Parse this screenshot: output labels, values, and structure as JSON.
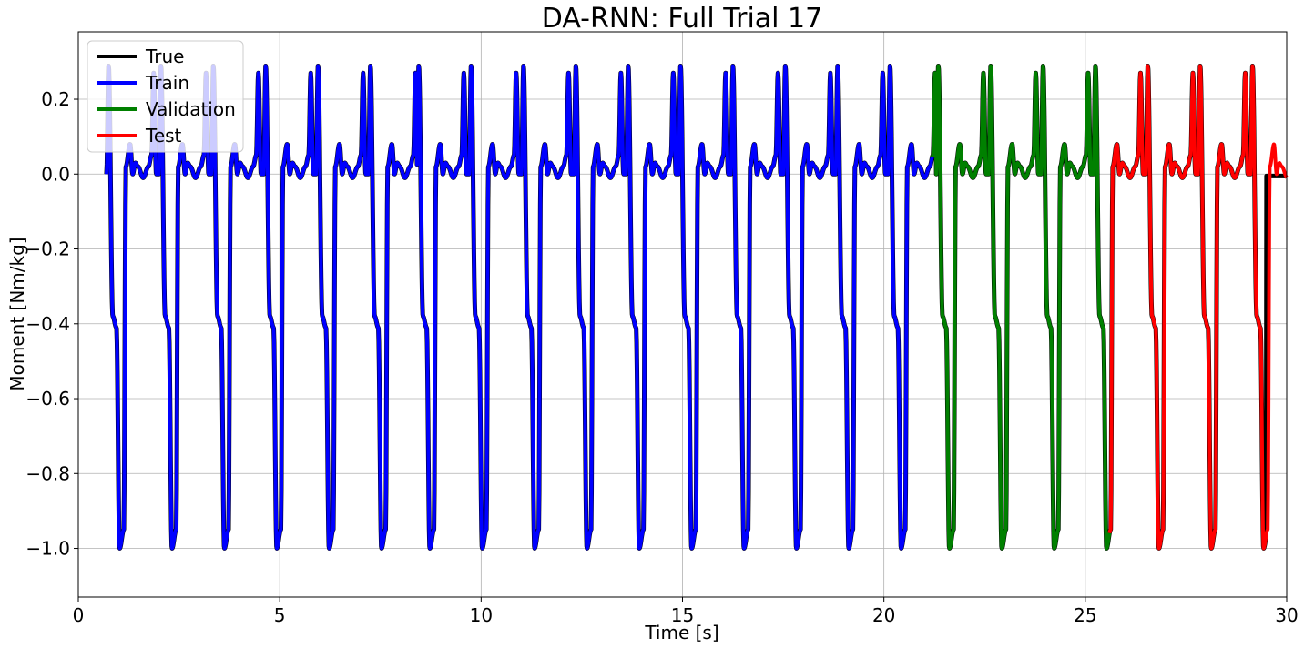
{
  "chart_data": {
    "type": "line",
    "title": "DA-RNN: Full Trial 17",
    "xlabel": "Time [s]",
    "ylabel": "Moment [Nm/kg]",
    "xlim": [
      0,
      30
    ],
    "ylim": [
      -1.13,
      0.38
    ],
    "xticks": [
      0,
      5,
      10,
      15,
      20,
      25,
      30
    ],
    "xtick_labels": [
      "0",
      "5",
      "10",
      "15",
      "20",
      "25",
      "30"
    ],
    "yticks": [
      0.2,
      0.0,
      -0.2,
      -0.4,
      -0.6,
      -0.8,
      -1.0
    ],
    "ytick_labels": [
      "0.2",
      "0.0",
      "−0.2",
      "−0.4",
      "−0.6",
      "−0.8",
      "−1.0"
    ],
    "grid": true,
    "legend_position": "top-left",
    "gait_cycle": {
      "period_s": 1.3,
      "phases": [
        0.0,
        0.04,
        0.12,
        0.19,
        0.25,
        0.33,
        0.37,
        0.45,
        0.5,
        0.55,
        0.6,
        0.7,
        0.8,
        0.86,
        0.9,
        0.95,
        1.0
      ],
      "moment": [
        0.0,
        0.29,
        -0.38,
        -0.41,
        -1.0,
        -0.95,
        0.02,
        0.08,
        0.0,
        0.03,
        0.02,
        -0.01,
        0.02,
        0.05,
        0.27,
        0.0,
        0.0
      ]
    },
    "cycle_starts_s": [
      0.7,
      2.0,
      3.3,
      4.6,
      5.9,
      7.2,
      8.4,
      9.7,
      11.0,
      12.3,
      13.6,
      14.9,
      16.2,
      17.5,
      18.8,
      20.1,
      21.3,
      22.6,
      23.9,
      25.2,
      26.5,
      27.8,
      29.1
    ],
    "series": [
      {
        "name": "True",
        "color": "#000000",
        "x_range": [
          0.7,
          30.0
        ],
        "flat_after_s": 29.5,
        "flat_value": -0.005
      },
      {
        "name": "Train",
        "color": "#0000ff",
        "x_range": [
          0.7,
          21.2
        ]
      },
      {
        "name": "Validation",
        "color": "#008000",
        "x_range": [
          21.2,
          25.6
        ]
      },
      {
        "name": "Test",
        "color": "#ff0000",
        "x_range": [
          25.6,
          30.0
        ]
      }
    ]
  }
}
